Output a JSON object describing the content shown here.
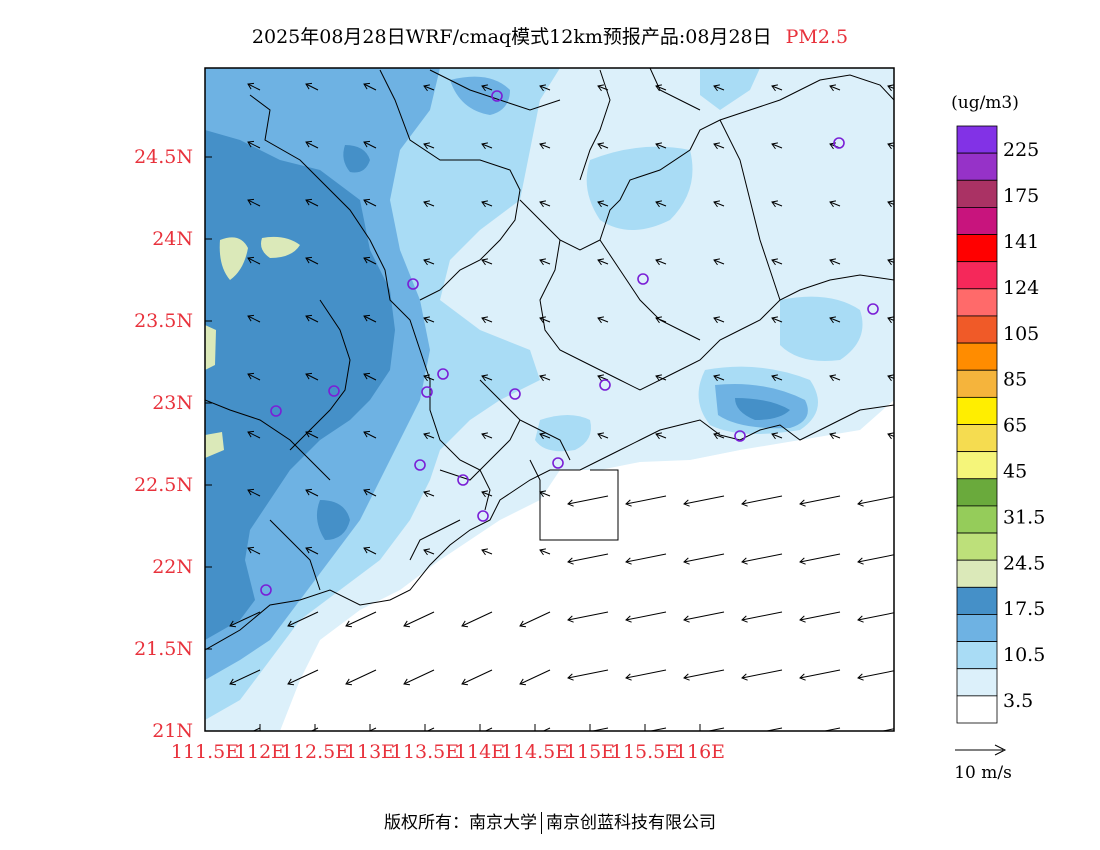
{
  "title": {
    "main": "2025年08月28日WRF/cmaq模式12km预报产品:08月28日",
    "pollutant": "PM2.5",
    "pollutant_color": "#e8323c"
  },
  "map": {
    "lon_ticks": [
      "111.5E",
      "112E",
      "112.5E",
      "113E",
      "113.5E",
      "114E",
      "114.5E",
      "115E",
      "115.5E",
      "116E"
    ],
    "lat_ticks": [
      "21N",
      "21.5N",
      "22N",
      "22.5N",
      "23N",
      "23.5N",
      "24N",
      "24.5N"
    ],
    "tick_color": "#e8323c"
  },
  "legend": {
    "unit": "(ug/m3)",
    "colors": [
      "#ffffff",
      "#dcf0fa",
      "#a9dcf5",
      "#6eb2e3",
      "#4590c8",
      "#dbe9b9",
      "#bde07a",
      "#95cc5a",
      "#6aaa3c",
      "#f5f57a",
      "#f5dc50",
      "#ffee00",
      "#f5b43c",
      "#ff8c00",
      "#f05a28",
      "#ff6a6a",
      "#f5285a",
      "#ff0000",
      "#c8147d",
      "#aa3264",
      "#9632c8",
      "#8232e6"
    ],
    "labels": [
      "3.5",
      "10.5",
      "17.5",
      "24.5",
      "31.5",
      "45",
      "65",
      "85",
      "105",
      "124",
      "141",
      "175",
      "225"
    ]
  },
  "wind_key": {
    "label": "10 m/s"
  },
  "stations_color": "#7a1fd6",
  "footer": {
    "left": "版权所有：南京大学",
    "right": "南京创蓝科技有限公司"
  }
}
